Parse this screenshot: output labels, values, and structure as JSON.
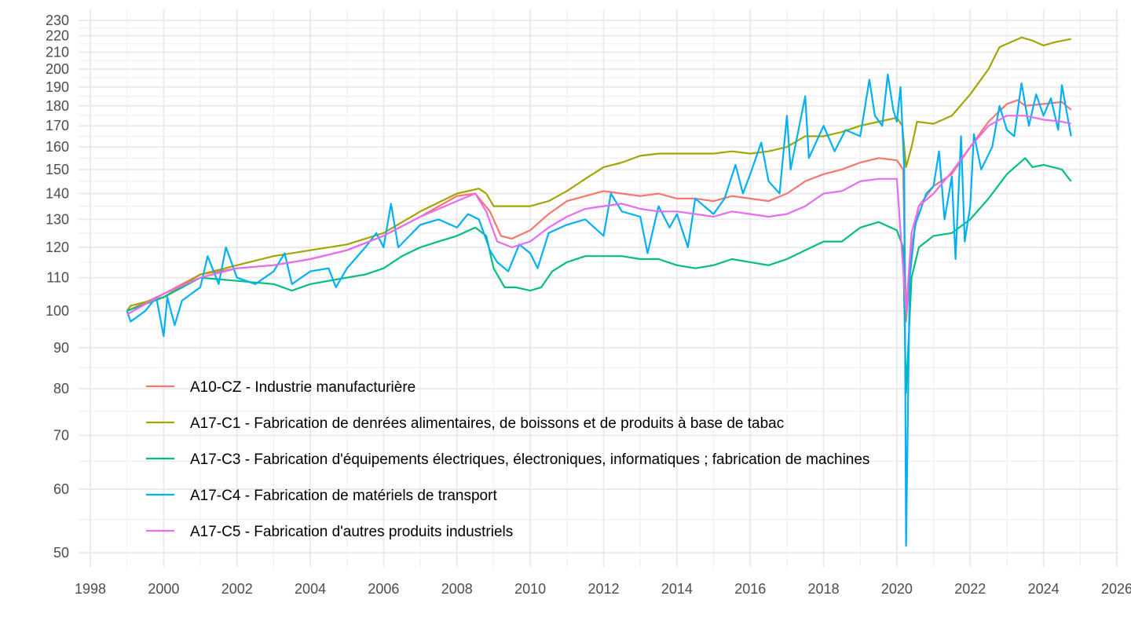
{
  "chart_data": {
    "type": "line",
    "title": "",
    "xlabel": "",
    "ylabel": "",
    "y_scale": "log",
    "xlim": [
      1998,
      2026
    ],
    "ylim": [
      48,
      232
    ],
    "x_ticks": [
      "1998",
      "2000",
      "2002",
      "2004",
      "2006",
      "2008",
      "2010",
      "2012",
      "2014",
      "2016",
      "2018",
      "2020",
      "2022",
      "2024",
      "2026"
    ],
    "y_ticks": [
      50,
      60,
      70,
      80,
      90,
      100,
      110,
      120,
      130,
      140,
      150,
      160,
      170,
      180,
      190,
      200,
      210,
      220,
      230
    ],
    "grid": true,
    "legend_position": "inside-bottom-left",
    "series": [
      {
        "name": "A10-CZ - Industrie manufacturière",
        "color": "#F8766D",
        "points": [
          [
            1999,
            100
          ],
          [
            2000,
            105
          ],
          [
            2001,
            111
          ],
          [
            2002,
            113
          ],
          [
            2003,
            114
          ],
          [
            2004,
            116
          ],
          [
            2005,
            119
          ],
          [
            2006,
            124
          ],
          [
            2007,
            131
          ],
          [
            2008,
            139
          ],
          [
            2008.5,
            140
          ],
          [
            2008.9,
            133
          ],
          [
            2009.2,
            124
          ],
          [
            2009.5,
            123
          ],
          [
            2010,
            126
          ],
          [
            2010.5,
            132
          ],
          [
            2011,
            137
          ],
          [
            2011.5,
            139
          ],
          [
            2012,
            141
          ],
          [
            2012.5,
            140
          ],
          [
            2013,
            139
          ],
          [
            2013.5,
            140
          ],
          [
            2014,
            138
          ],
          [
            2014.5,
            138
          ],
          [
            2015,
            137
          ],
          [
            2015.5,
            139
          ],
          [
            2016,
            138
          ],
          [
            2016.5,
            137
          ],
          [
            2017,
            140
          ],
          [
            2017.5,
            145
          ],
          [
            2018,
            148
          ],
          [
            2018.5,
            150
          ],
          [
            2019,
            153
          ],
          [
            2019.5,
            155
          ],
          [
            2020,
            154
          ],
          [
            2020.17,
            150
          ],
          [
            2020.25,
            97
          ],
          [
            2020.4,
            120
          ],
          [
            2020.6,
            135
          ],
          [
            2021,
            143
          ],
          [
            2021.5,
            148
          ],
          [
            2022,
            160
          ],
          [
            2022.5,
            172
          ],
          [
            2023,
            181
          ],
          [
            2023.3,
            183
          ],
          [
            2023.5,
            180
          ],
          [
            2024,
            181
          ],
          [
            2024.5,
            182
          ],
          [
            2024.75,
            178
          ]
        ]
      },
      {
        "name": "A17-C1 - Fabrication de denrées alimentaires, de boissons et de produits à base de tabac",
        "color": "#A3A500",
        "points": [
          [
            1999,
            100
          ],
          [
            1999.1,
            101.5
          ],
          [
            2000,
            104
          ],
          [
            2001,
            111
          ],
          [
            2002,
            114
          ],
          [
            2003,
            117
          ],
          [
            2004,
            119
          ],
          [
            2005,
            121
          ],
          [
            2006,
            125
          ],
          [
            2007,
            133
          ],
          [
            2008,
            140
          ],
          [
            2008.6,
            142
          ],
          [
            2008.8,
            140
          ],
          [
            2009,
            135
          ],
          [
            2009.5,
            135
          ],
          [
            2010,
            135
          ],
          [
            2010.5,
            137
          ],
          [
            2011,
            141
          ],
          [
            2011.5,
            146
          ],
          [
            2012,
            151
          ],
          [
            2012.5,
            153
          ],
          [
            2013,
            156
          ],
          [
            2013.5,
            157
          ],
          [
            2014,
            157
          ],
          [
            2014.5,
            157
          ],
          [
            2015,
            157
          ],
          [
            2015.5,
            158
          ],
          [
            2016,
            157
          ],
          [
            2016.5,
            158
          ],
          [
            2017,
            160
          ],
          [
            2017.5,
            165
          ],
          [
            2018,
            165
          ],
          [
            2018.5,
            167
          ],
          [
            2019,
            170
          ],
          [
            2019.5,
            172
          ],
          [
            2020,
            174
          ],
          [
            2020.15,
            170
          ],
          [
            2020.25,
            151
          ],
          [
            2020.4,
            160
          ],
          [
            2020.55,
            172
          ],
          [
            2021,
            171
          ],
          [
            2021.5,
            175
          ],
          [
            2022,
            186
          ],
          [
            2022.5,
            200
          ],
          [
            2022.8,
            213
          ],
          [
            2023,
            215
          ],
          [
            2023.4,
            219
          ],
          [
            2023.7,
            217
          ],
          [
            2024,
            214
          ],
          [
            2024.3,
            216
          ],
          [
            2024.75,
            218
          ]
        ]
      },
      {
        "name": "A17-C3 - Fabrication d'équipements électriques, électroniques, informatiques ; fabrication de machines",
        "color": "#00BF7D",
        "points": [
          [
            1999,
            100
          ],
          [
            2000,
            104
          ],
          [
            2001,
            110
          ],
          [
            2002,
            109
          ],
          [
            2003,
            108
          ],
          [
            2003.5,
            106
          ],
          [
            2004,
            108
          ],
          [
            2005,
            110
          ],
          [
            2005.5,
            111
          ],
          [
            2006,
            113
          ],
          [
            2006.5,
            117
          ],
          [
            2007,
            120
          ],
          [
            2007.5,
            122
          ],
          [
            2008,
            124
          ],
          [
            2008.5,
            127
          ],
          [
            2008.8,
            124
          ],
          [
            2009,
            113
          ],
          [
            2009.3,
            107
          ],
          [
            2009.6,
            107
          ],
          [
            2010,
            106
          ],
          [
            2010.3,
            107
          ],
          [
            2010.6,
            112
          ],
          [
            2011,
            115
          ],
          [
            2011.5,
            117
          ],
          [
            2012,
            117
          ],
          [
            2012.5,
            117
          ],
          [
            2013,
            116
          ],
          [
            2013.5,
            116
          ],
          [
            2014,
            114
          ],
          [
            2014.5,
            113
          ],
          [
            2015,
            114
          ],
          [
            2015.5,
            116
          ],
          [
            2016,
            115
          ],
          [
            2016.5,
            114
          ],
          [
            2017,
            116
          ],
          [
            2017.5,
            119
          ],
          [
            2018,
            122
          ],
          [
            2018.5,
            122
          ],
          [
            2019,
            127
          ],
          [
            2019.5,
            129
          ],
          [
            2020,
            126
          ],
          [
            2020.17,
            120
          ],
          [
            2020.25,
            79
          ],
          [
            2020.4,
            110
          ],
          [
            2020.6,
            120
          ],
          [
            2021,
            124
          ],
          [
            2021.5,
            125
          ],
          [
            2022,
            130
          ],
          [
            2022.5,
            138
          ],
          [
            2023,
            148
          ],
          [
            2023.5,
            155
          ],
          [
            2023.7,
            151
          ],
          [
            2024,
            152
          ],
          [
            2024.5,
            150
          ],
          [
            2024.75,
            145
          ]
        ]
      },
      {
        "name": "A17-C4 - Fabrication de matériels de transport",
        "color": "#00B0F6",
        "points": [
          [
            1999,
            100
          ],
          [
            1999.1,
            97
          ],
          [
            1999.5,
            100
          ],
          [
            1999.8,
            104
          ],
          [
            2000,
            93
          ],
          [
            2000.1,
            104
          ],
          [
            2000.3,
            96
          ],
          [
            2000.5,
            103
          ],
          [
            2001,
            107
          ],
          [
            2001.2,
            117
          ],
          [
            2001.5,
            108
          ],
          [
            2001.7,
            120
          ],
          [
            2002,
            110
          ],
          [
            2002.5,
            108
          ],
          [
            2003,
            112
          ],
          [
            2003.3,
            118
          ],
          [
            2003.5,
            108
          ],
          [
            2004,
            112
          ],
          [
            2004.5,
            113
          ],
          [
            2004.7,
            107
          ],
          [
            2005,
            113
          ],
          [
            2005.5,
            120
          ],
          [
            2005.8,
            125
          ],
          [
            2006,
            120
          ],
          [
            2006.2,
            136
          ],
          [
            2006.4,
            120
          ],
          [
            2007,
            128
          ],
          [
            2007.5,
            130
          ],
          [
            2008,
            127
          ],
          [
            2008.3,
            132
          ],
          [
            2008.6,
            130
          ],
          [
            2008.9,
            119
          ],
          [
            2009.1,
            115
          ],
          [
            2009.4,
            112
          ],
          [
            2009.7,
            121
          ],
          [
            2010,
            118
          ],
          [
            2010.2,
            113
          ],
          [
            2010.5,
            125
          ],
          [
            2011,
            128
          ],
          [
            2011.5,
            130
          ],
          [
            2012,
            124
          ],
          [
            2012.2,
            140
          ],
          [
            2012.5,
            133
          ],
          [
            2013,
            131
          ],
          [
            2013.2,
            118
          ],
          [
            2013.5,
            135
          ],
          [
            2013.8,
            127
          ],
          [
            2014,
            132
          ],
          [
            2014.3,
            120
          ],
          [
            2014.5,
            138
          ],
          [
            2015,
            132
          ],
          [
            2015.3,
            138
          ],
          [
            2015.6,
            152
          ],
          [
            2015.8,
            140
          ],
          [
            2016,
            148
          ],
          [
            2016.3,
            162
          ],
          [
            2016.5,
            145
          ],
          [
            2016.8,
            140
          ],
          [
            2017,
            175
          ],
          [
            2017.1,
            150
          ],
          [
            2017.5,
            185
          ],
          [
            2017.6,
            155
          ],
          [
            2018,
            170
          ],
          [
            2018.3,
            158
          ],
          [
            2018.6,
            168
          ],
          [
            2019,
            165
          ],
          [
            2019.25,
            194
          ],
          [
            2019.4,
            175
          ],
          [
            2019.6,
            170
          ],
          [
            2019.75,
            197
          ],
          [
            2019.9,
            178
          ],
          [
            2020,
            172
          ],
          [
            2020.1,
            190
          ],
          [
            2020.2,
            150
          ],
          [
            2020.25,
            51
          ],
          [
            2020.35,
            110
          ],
          [
            2020.5,
            128
          ],
          [
            2020.8,
            140
          ],
          [
            2021,
            143
          ],
          [
            2021.15,
            158
          ],
          [
            2021.3,
            130
          ],
          [
            2021.5,
            147
          ],
          [
            2021.6,
            116
          ],
          [
            2021.75,
            165
          ],
          [
            2021.85,
            122
          ],
          [
            2022,
            135
          ],
          [
            2022.1,
            166
          ],
          [
            2022.3,
            150
          ],
          [
            2022.6,
            160
          ],
          [
            2022.8,
            180
          ],
          [
            2023,
            168
          ],
          [
            2023.2,
            165
          ],
          [
            2023.4,
            192
          ],
          [
            2023.6,
            170
          ],
          [
            2023.8,
            186
          ],
          [
            2024,
            175
          ],
          [
            2024.2,
            184
          ],
          [
            2024.4,
            168
          ],
          [
            2024.5,
            191
          ],
          [
            2024.7,
            170
          ],
          [
            2024.75,
            165
          ]
        ]
      },
      {
        "name": "A17-C5 - Fabrication d'autres produits industriels",
        "color": "#E76BF3",
        "points": [
          [
            1999,
            99
          ],
          [
            2000,
            105
          ],
          [
            2001,
            110
          ],
          [
            2002,
            113
          ],
          [
            2003,
            114
          ],
          [
            2004,
            116
          ],
          [
            2005,
            119
          ],
          [
            2006,
            124
          ],
          [
            2007,
            131
          ],
          [
            2008,
            137
          ],
          [
            2008.5,
            140
          ],
          [
            2008.8,
            133
          ],
          [
            2009.1,
            122
          ],
          [
            2009.5,
            120
          ],
          [
            2010,
            122
          ],
          [
            2010.5,
            127
          ],
          [
            2011,
            131
          ],
          [
            2011.5,
            134
          ],
          [
            2012,
            135
          ],
          [
            2012.5,
            136
          ],
          [
            2013,
            134
          ],
          [
            2013.5,
            133
          ],
          [
            2014,
            133
          ],
          [
            2014.5,
            132
          ],
          [
            2015,
            131
          ],
          [
            2015.5,
            133
          ],
          [
            2016,
            132
          ],
          [
            2016.5,
            131
          ],
          [
            2017,
            132
          ],
          [
            2017.5,
            135
          ],
          [
            2018,
            140
          ],
          [
            2018.5,
            141
          ],
          [
            2019,
            145
          ],
          [
            2019.5,
            146
          ],
          [
            2020,
            146
          ],
          [
            2020.25,
            100
          ],
          [
            2020.4,
            125
          ],
          [
            2020.6,
            135
          ],
          [
            2021,
            140
          ],
          [
            2021.5,
            149
          ],
          [
            2022,
            160
          ],
          [
            2022.5,
            170
          ],
          [
            2023,
            175
          ],
          [
            2023.5,
            175
          ],
          [
            2024,
            173
          ],
          [
            2024.5,
            172
          ],
          [
            2024.75,
            171
          ]
        ]
      }
    ]
  }
}
